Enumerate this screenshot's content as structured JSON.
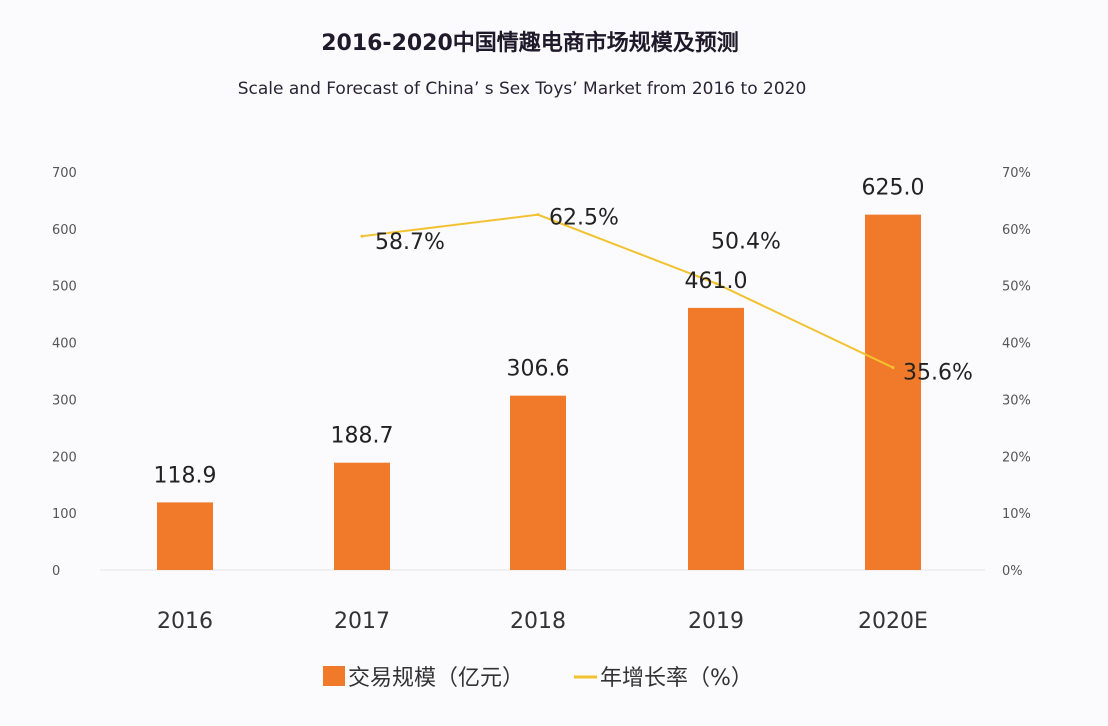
{
  "chart_data": {
    "type": "bar",
    "title": "2016-2020中国情趣电商市场规模及预测",
    "subtitle": "Scale and Forecast of China’ s Sex Toys’ Market from 2016 to 2020",
    "categories": [
      "2016",
      "2017",
      "2018",
      "2019",
      "2020E"
    ],
    "series": [
      {
        "name": "交易规模（亿元）",
        "type": "bar",
        "axis": "left",
        "color": "#f07a2a",
        "values": [
          118.9,
          188.7,
          306.6,
          461.0,
          625.0
        ],
        "labels": [
          "118.9",
          "188.7",
          "306.6",
          "461.0",
          "625.0"
        ]
      },
      {
        "name": "年增长率（%）",
        "type": "line",
        "axis": "right",
        "color": "#f2c230",
        "values": [
          null,
          58.7,
          62.5,
          50.4,
          35.6
        ],
        "labels": [
          "",
          "58.7%",
          "62.5%",
          "50.4%",
          "35.6%"
        ]
      }
    ],
    "left_axis": {
      "ylim": [
        0,
        700
      ],
      "ticks": [
        "0",
        "100",
        "200",
        "300",
        "400",
        "500",
        "600",
        "700"
      ]
    },
    "right_axis": {
      "ylim": [
        0,
        70
      ],
      "ticks": [
        "0%",
        "10%",
        "20%",
        "30%",
        "40%",
        "50%",
        "60%",
        "70%"
      ]
    },
    "grid": false,
    "legend_position": "bottom"
  }
}
